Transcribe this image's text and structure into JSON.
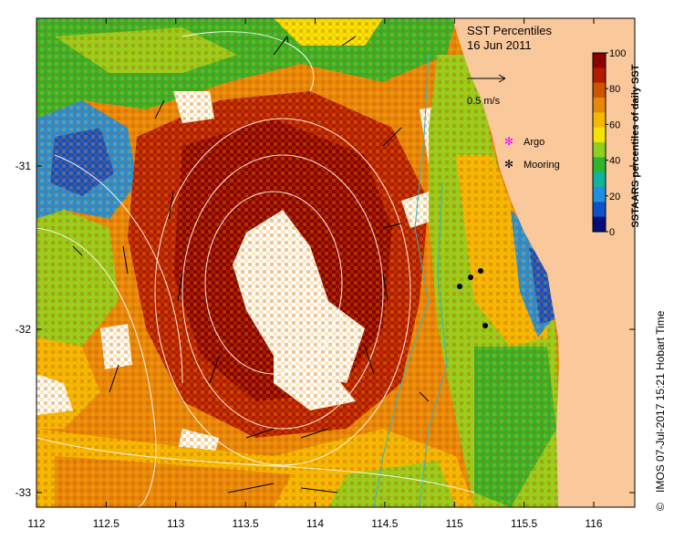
{
  "map": {
    "title": "SST Percentiles",
    "date": "16 Jun 2011",
    "velocity_scale_label": "0.5 m/s",
    "legend": {
      "argo": "Argo",
      "mooring": "Mooring"
    },
    "colorbar": {
      "label": "SSTAARS percentiles of daily SST",
      "ticks": [
        "100",
        "80",
        "60",
        "40",
        "20",
        "0"
      ],
      "colors": [
        "#8b0000",
        "#b31b00",
        "#cc5500",
        "#e8870a",
        "#f5b800",
        "#f5e400",
        "#8fcf1e",
        "#2db52d",
        "#11b39e",
        "#1f8fe0",
        "#1050c8",
        "#000d7a"
      ]
    },
    "credit": "IMOS 07-Jul-2017 15:21 Hobart Time",
    "copyright_symbol": "©",
    "x_ticks": [
      "112",
      "112.5",
      "113",
      "113.5",
      "114",
      "114.5",
      "115",
      "115.5",
      "116"
    ],
    "y_ticks": [
      "-31",
      "-32",
      "-33"
    ],
    "land_color": "#f9c89b",
    "missing_color": "#ffffff"
  }
}
